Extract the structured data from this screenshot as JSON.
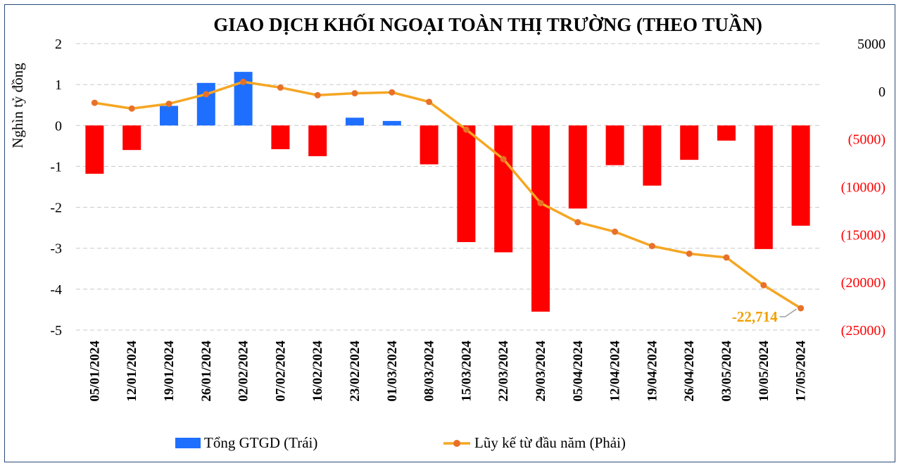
{
  "chart_data": {
    "type": "bar+line",
    "title": "GIAO DỊCH KHỐI NGOẠI TOÀN THỊ TRƯỜNG (THEO TUẦN)",
    "ylabel": "Nghìn tỷ đồng",
    "categories": [
      "05/01/2024",
      "12/01/2024",
      "19/01/2024",
      "26/01/2024",
      "02/02/2024",
      "07/02/2024",
      "16/02/2024",
      "23/02/2024",
      "01/03/2024",
      "08/03/2024",
      "15/03/2024",
      "22/03/2024",
      "29/03/2024",
      "05/04/2024",
      "12/04/2024",
      "19/04/2024",
      "26/04/2024",
      "03/05/2024",
      "10/05/2024",
      "17/05/2024"
    ],
    "left_axis": {
      "ylim": [
        -5,
        2
      ],
      "ticks": [
        "2",
        "1",
        "0",
        "-1",
        "-2",
        "-3",
        "-4",
        "-5"
      ],
      "tick_values": [
        2,
        1,
        0,
        -1,
        -2,
        -3,
        -4,
        -5
      ]
    },
    "right_axis": {
      "ylim": [
        -25000,
        5000
      ],
      "ticks": [
        "5000",
        "0",
        "(5000)",
        "(10000)",
        "(15000)",
        "(20000)",
        "(25000)"
      ],
      "tick_values": [
        5000,
        0,
        -5000,
        -10000,
        -15000,
        -20000,
        -25000
      ]
    },
    "series": [
      {
        "name": "Tổng GTGD (Trái)",
        "type": "bar",
        "axis": "left",
        "values": [
          -1.18,
          -0.6,
          0.48,
          1.04,
          1.31,
          -0.58,
          -0.75,
          0.19,
          0.11,
          -0.95,
          -2.85,
          -3.1,
          -4.55,
          -2.03,
          -0.97,
          -1.47,
          -0.84,
          -0.37,
          -3.02,
          -2.45
        ]
      },
      {
        "name": "Lũy kế từ đầu năm (Phải)",
        "type": "line",
        "axis": "right",
        "values": [
          -1200,
          -1800,
          -1300,
          -300,
          1000,
          400,
          -400,
          -200,
          -100,
          -1100,
          -4000,
          -7100,
          -11700,
          -13700,
          -14700,
          -16200,
          -17000,
          -17400,
          -20300,
          -22714
        ]
      }
    ],
    "colors": {
      "positive_bar": "#1f6fff",
      "negative_bar": "#ff0000",
      "line": "#f5a623",
      "marker": "#e8712a",
      "right_negative_tick": "#ff0000",
      "callout": "#f0a000"
    },
    "annotation": {
      "text": "-22,714",
      "series": "Lũy kế từ đầu năm (Phải)",
      "category": "17/05/2024"
    },
    "legend": {
      "placement": "bottom"
    },
    "grid": {
      "horizontal": true,
      "style": "dashed"
    }
  }
}
